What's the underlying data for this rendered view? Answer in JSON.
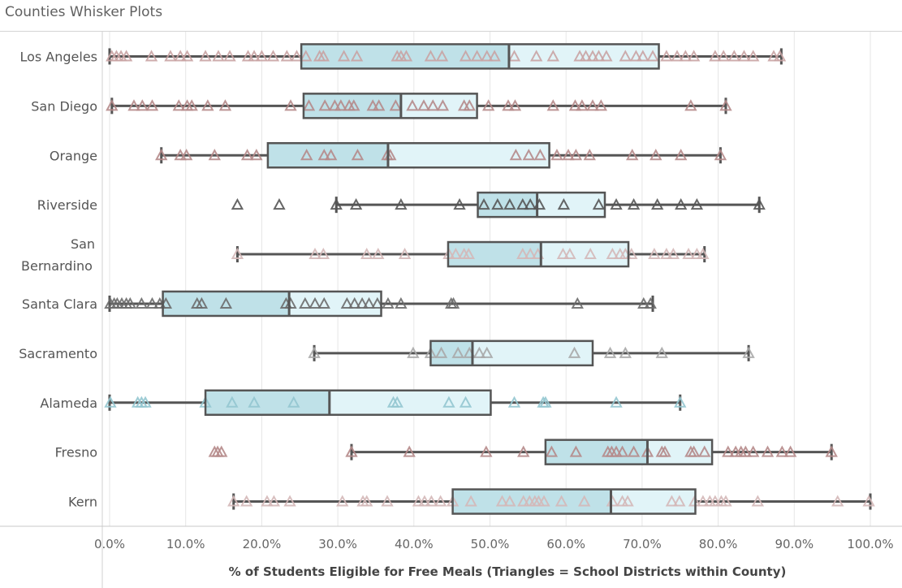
{
  "title": "Counties Whisker Plots",
  "chart_data": {
    "type": "boxplot",
    "title": "Counties Whisker Plots",
    "xlabel": "% of Students Eligible for Free Meals (Triangles = School Districts within County)",
    "ylabel": "",
    "xlim": [
      -1.5,
      101.5
    ],
    "x_ticks": [
      0,
      10,
      20,
      30,
      40,
      50,
      60,
      70,
      80,
      90,
      100
    ],
    "x_tick_labels": [
      "0.0%",
      "10.0%",
      "20.0%",
      "30.0%",
      "40.0%",
      "50.0%",
      "60.0%",
      "70.0%",
      "80.0%",
      "90.0%",
      "100.0%"
    ],
    "grid": "vertical",
    "colors": {
      "lower_box": "#bfe1e8",
      "upper_box": "#e1f4f8",
      "box_stroke": "#555555",
      "axis": "#999999",
      "grid": "#e6e6e6"
    },
    "categories": [
      {
        "name": "Los Angeles",
        "whisker_low": 0.0,
        "q1": 25.2,
        "median": 52.5,
        "q3": 72.2,
        "whisker_high": 88.3,
        "point_color": "#c9a3a3",
        "points": [
          0.3,
          0.9,
          1.5,
          2.2,
          5.5,
          8.0,
          9.3,
          10.2,
          12.6,
          14.3,
          15.8,
          18.2,
          19.0,
          20.0,
          21.5,
          23.3,
          24.6,
          25.8,
          27.6,
          28.1,
          30.8,
          32.5,
          37.8,
          38.3,
          39.0,
          42.2,
          43.7,
          46.8,
          48.3,
          49.6,
          50.6,
          53.2,
          56.1,
          58.3,
          61.8,
          62.6,
          63.5,
          64.3,
          65.3,
          67.8,
          69.2,
          70.1,
          71.4,
          73.2,
          74.6,
          75.7,
          76.8,
          79.6,
          80.7,
          82.1,
          83.4,
          84.6,
          87.3,
          88.1
        ]
      },
      {
        "name": "San Diego",
        "whisker_low": 0.3,
        "q1": 25.5,
        "median": 38.3,
        "q3": 48.3,
        "whisker_high": 81.0,
        "point_color": "#b58a8a",
        "points": [
          0.3,
          3.2,
          4.3,
          5.6,
          9.1,
          10.2,
          10.8,
          12.9,
          15.2,
          23.8,
          26.2,
          28.3,
          29.6,
          30.4,
          31.5,
          32.1,
          34.6,
          35.4,
          37.6,
          39.8,
          41.3,
          42.5,
          43.8,
          46.6,
          47.3,
          49.8,
          52.4,
          53.3,
          58.3,
          61.2,
          62.1,
          63.5,
          64.6,
          76.4,
          81.0
        ]
      },
      {
        "name": "Orange",
        "whisker_low": 6.8,
        "q1": 20.8,
        "median": 36.6,
        "q3": 57.8,
        "whisker_high": 80.3,
        "point_color": "#b58a8a",
        "points": [
          6.8,
          9.3,
          10.1,
          13.8,
          18.1,
          19.3,
          25.9,
          28.2,
          29.1,
          32.6,
          36.5,
          36.9,
          53.4,
          55.1,
          56.6,
          58.8,
          60.3,
          61.3,
          63.1,
          68.7,
          71.8,
          75.1,
          80.3
        ]
      },
      {
        "name": "Riverside",
        "whisker_low": 29.8,
        "q1": 48.4,
        "median": 56.2,
        "q3": 65.1,
        "whisker_high": 85.4,
        "point_color": "#555555",
        "points": [
          16.8,
          22.3,
          29.8,
          32.4,
          38.3,
          46.0,
          49.2,
          51.0,
          52.6,
          54.3,
          55.3,
          56.5,
          59.7,
          64.3,
          66.6,
          68.9,
          72.0,
          75.1,
          77.2,
          85.4
        ]
      },
      {
        "name": "San Bernardino",
        "whisker_low": 16.8,
        "q1": 44.5,
        "median": 56.7,
        "q3": 68.2,
        "whisker_high": 78.2,
        "point_color": "#d4b8b8",
        "points": [
          16.8,
          27.0,
          28.1,
          33.8,
          35.3,
          38.8,
          44.6,
          45.5,
          46.6,
          47.2,
          54.3,
          55.3,
          56.3,
          59.6,
          60.5,
          63.2,
          66.1,
          67.1,
          67.8,
          68.6,
          71.6,
          73.2,
          74.1,
          76.1,
          77.2,
          78.0
        ]
      },
      {
        "name": "Santa Clara",
        "whisker_low": 0.0,
        "q1": 7.0,
        "median": 23.6,
        "q3": 35.7,
        "whisker_high": 71.4,
        "point_color": "#6b6b6b",
        "points": [
          0.1,
          0.6,
          1.0,
          1.6,
          2.2,
          2.7,
          4.2,
          5.6,
          6.6,
          7.4,
          11.5,
          12.1,
          15.3,
          23.2,
          23.8,
          25.7,
          27.0,
          28.2,
          31.2,
          32.2,
          33.2,
          34.1,
          35.2,
          36.6,
          38.3,
          44.9,
          45.2,
          61.5,
          70.2,
          71.1
        ]
      },
      {
        "name": "Sacramento",
        "whisker_low": 26.9,
        "q1": 42.2,
        "median": 47.7,
        "q3": 63.5,
        "whisker_high": 84.0,
        "point_color": "#a8a8a8",
        "points": [
          26.9,
          39.9,
          42.2,
          43.6,
          45.8,
          47.3,
          48.6,
          49.6,
          61.1,
          65.8,
          67.8,
          72.6,
          84.0
        ]
      },
      {
        "name": "Alameda",
        "whisker_low": 0.0,
        "q1": 12.6,
        "median": 28.9,
        "q3": 50.1,
        "whisker_high": 75.0,
        "point_color": "#94c6d0",
        "points": [
          0.1,
          3.7,
          4.2,
          4.7,
          12.6,
          16.1,
          19.0,
          24.2,
          37.3,
          37.8,
          44.6,
          46.8,
          53.2,
          57.0,
          57.3,
          66.6,
          75.0
        ]
      },
      {
        "name": "Fresno",
        "whisker_low": 31.8,
        "q1": 57.3,
        "median": 70.7,
        "q3": 79.2,
        "whisker_high": 94.9,
        "point_color": "#b58a8a",
        "points": [
          13.8,
          14.2,
          14.7,
          31.8,
          39.4,
          49.5,
          54.4,
          58.1,
          61.3,
          65.5,
          66.0,
          66.6,
          67.4,
          68.9,
          70.7,
          72.6,
          73.0,
          76.4,
          76.8,
          78.2,
          81.3,
          82.3,
          83.0,
          83.6,
          84.6,
          86.5,
          88.4,
          89.5,
          94.9
        ]
      },
      {
        "name": "Kern",
        "whisker_low": 16.3,
        "q1": 45.1,
        "median": 65.9,
        "q3": 77.0,
        "whisker_high": 100.0,
        "point_color": "#d4b8b8",
        "points": [
          16.3,
          18.0,
          20.7,
          21.6,
          23.7,
          30.6,
          33.3,
          33.8,
          36.5,
          40.6,
          41.4,
          42.3,
          43.5,
          45.1,
          47.5,
          51.6,
          52.6,
          54.4,
          55.2,
          55.9,
          56.4,
          57.1,
          59.4,
          62.4,
          66.1,
          67.4,
          68.1,
          73.9,
          74.9,
          76.9,
          78.0,
          78.9,
          79.6,
          80.4,
          81.0,
          85.2,
          95.7,
          99.8
        ]
      }
    ]
  }
}
